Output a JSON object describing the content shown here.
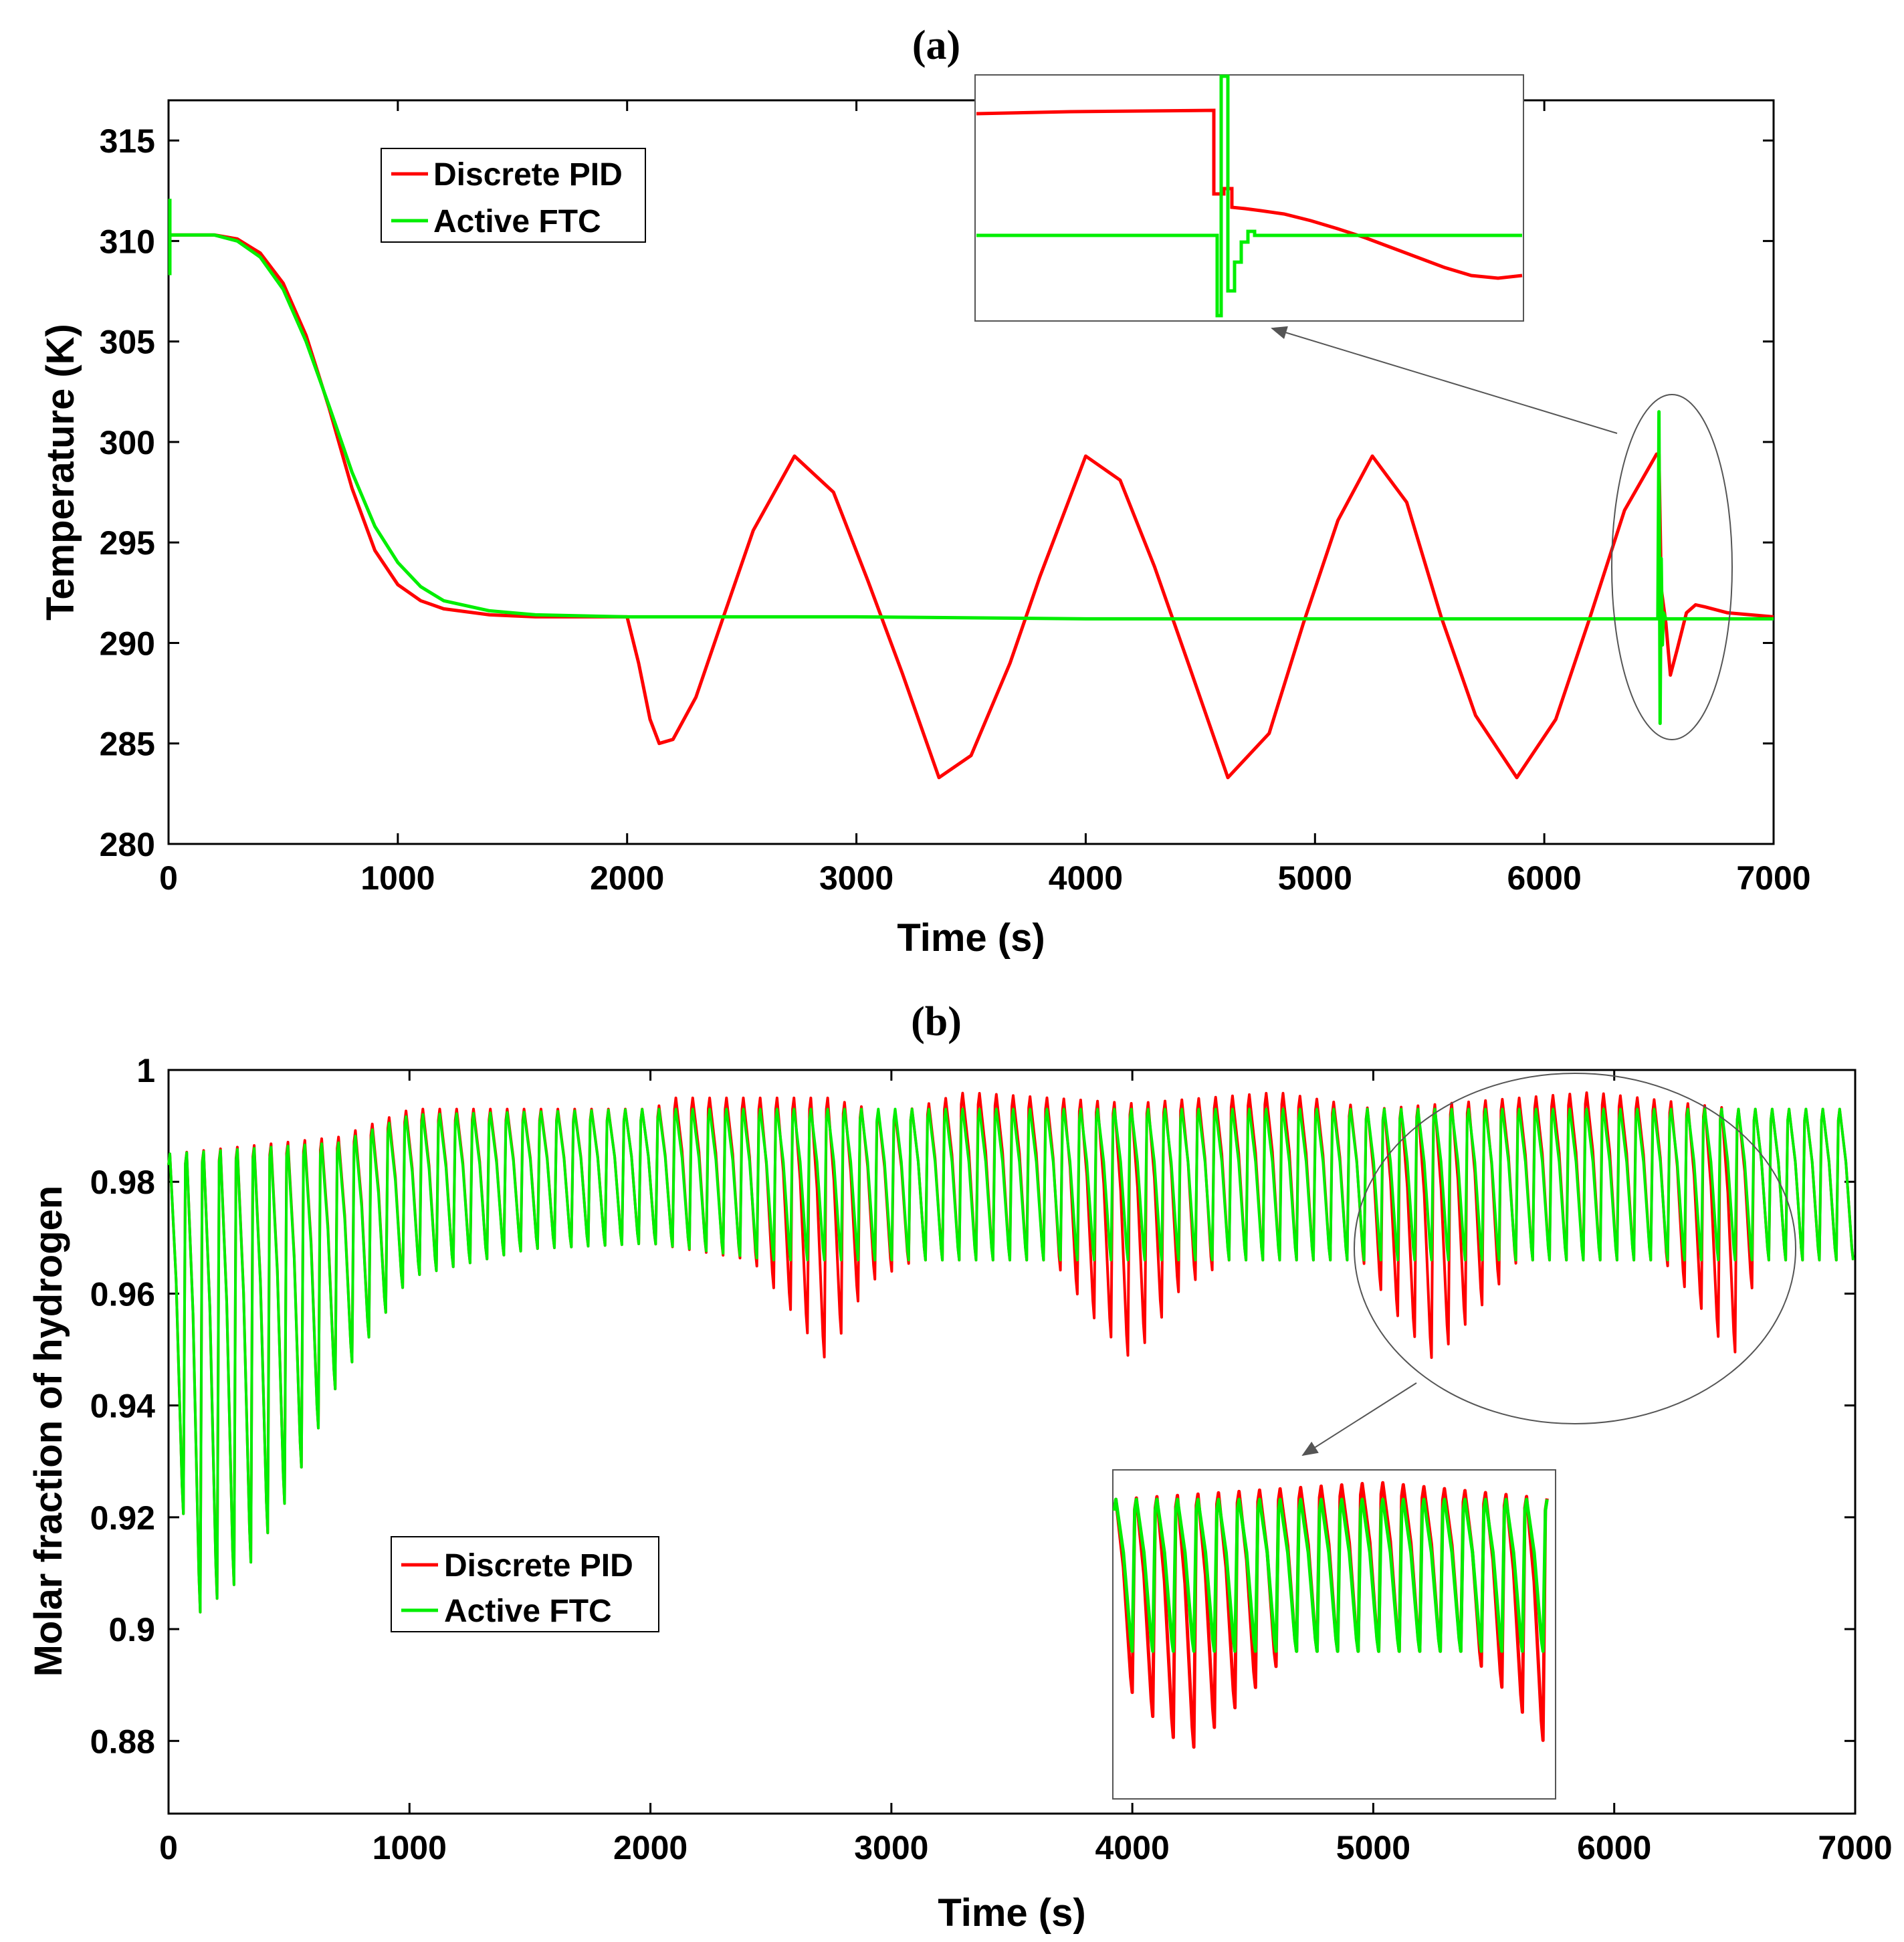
{
  "colors": {
    "pid": "#ff0000",
    "ftc": "#00ee00",
    "axis": "#000000",
    "annotation": "#555555"
  },
  "chart_data": [
    {
      "panel_label": "(a)",
      "type": "line",
      "xlabel": "Time (s)",
      "ylabel": "Temperature (K)",
      "xlim": [
        0,
        7000
      ],
      "ylim": [
        280,
        317
      ],
      "xticks": [
        "0",
        "1000",
        "2000",
        "3000",
        "4000",
        "5000",
        "6000",
        "7000"
      ],
      "yticks": [
        "280",
        "285",
        "290",
        "295",
        "300",
        "305",
        "310",
        "315"
      ],
      "legend": {
        "position": "top-left",
        "entries": [
          "Discrete PID",
          "Active FTC"
        ]
      },
      "series": [
        {
          "name": "Discrete PID",
          "x": [
            0,
            200,
            300,
            400,
            500,
            600,
            700,
            800,
            900,
            1000,
            1100,
            1200,
            1400,
            1600,
            2000,
            2050,
            2100,
            2140,
            2200,
            2300,
            2420,
            2550,
            2730,
            2900,
            3050,
            3200,
            3360,
            3500,
            3670,
            3800,
            4000,
            4150,
            4300,
            4450,
            4620,
            4800,
            4950,
            5100,
            5250,
            5400,
            5550,
            5700,
            5880,
            6050,
            6200,
            6350,
            6490,
            6500,
            6510,
            6530,
            6550,
            6580,
            6620,
            6660,
            6700,
            6800,
            7000
          ],
          "y": [
            310.3,
            310.3,
            310.1,
            309.4,
            307.9,
            305.3,
            301.7,
            297.7,
            294.6,
            292.9,
            292.1,
            291.7,
            291.4,
            291.3,
            291.3,
            289.0,
            286.2,
            285.0,
            285.2,
            287.3,
            291.3,
            295.6,
            299.3,
            297.5,
            293.1,
            288.5,
            283.3,
            284.4,
            289.0,
            293.3,
            299.3,
            298.1,
            293.8,
            288.9,
            283.3,
            285.5,
            291.0,
            296.1,
            299.3,
            297.0,
            291.3,
            286.4,
            283.3,
            286.2,
            291.3,
            296.6,
            299.4,
            299.4,
            292.7,
            291.0,
            288.4,
            289.7,
            291.5,
            291.9,
            291.8,
            291.5,
            291.3
          ]
        },
        {
          "name": "Active FTC",
          "x": [
            0,
            200,
            300,
            400,
            500,
            600,
            700,
            800,
            900,
            1000,
            1100,
            1200,
            1400,
            1600,
            2000,
            3000,
            4000,
            5000,
            6000,
            6495,
            6500,
            6505,
            6510,
            6515,
            6520,
            6530,
            7000
          ],
          "y": [
            310.3,
            310.3,
            310.0,
            309.2,
            307.6,
            305.0,
            301.8,
            298.5,
            295.8,
            294.0,
            292.8,
            292.1,
            291.6,
            291.4,
            291.3,
            291.3,
            291.2,
            291.2,
            291.2,
            291.2,
            301.5,
            286.0,
            294.2,
            289.9,
            291.5,
            291.2,
            291.2
          ]
        }
      ],
      "zoom_annotation": "inset magnifies the transient near t = 6500 s"
    },
    {
      "panel_label": "(b)",
      "type": "line",
      "xlabel": "Time (s)",
      "ylabel": "Molar fraction of hydrogen",
      "xlim": [
        0,
        7000
      ],
      "ylim": [
        0.867,
        1.0
      ],
      "xticks": [
        "0",
        "1000",
        "2000",
        "3000",
        "4000",
        "5000",
        "6000",
        "7000"
      ],
      "yticks": [
        "0.88",
        "0.9",
        "0.92",
        "0.94",
        "0.96",
        "0.98",
        "1"
      ],
      "legend": {
        "position": "bottom-left",
        "entries": [
          "Discrete PID",
          "Active FTC"
        ]
      },
      "cycle_period_s": 70,
      "series": [
        {
          "name": "Discrete PID",
          "description": "sawtooth oscillation each ~70 s cycle",
          "peak_envelope": [
            [
              0,
              0.985
            ],
            [
              700,
              0.988
            ],
            [
              1000,
              0.993
            ],
            [
              2000,
              0.993
            ],
            [
              2100,
              0.995
            ],
            [
              2400,
              0.995
            ],
            [
              2730,
              0.995
            ],
            [
              3000,
              0.992
            ],
            [
              3300,
              0.996
            ],
            [
              4000,
              0.994
            ],
            [
              4600,
              0.996
            ],
            [
              5000,
              0.993
            ],
            [
              5900,
              0.996
            ],
            [
              6500,
              0.993
            ],
            [
              7000,
              0.993
            ]
          ],
          "trough_envelope": [
            [
              0,
              0.948
            ],
            [
              100,
              0.902
            ],
            [
              300,
              0.909
            ],
            [
              500,
              0.924
            ],
            [
              700,
              0.944
            ],
            [
              1000,
              0.963
            ],
            [
              1500,
              0.968
            ],
            [
              2000,
              0.969
            ],
            [
              2420,
              0.966
            ],
            [
              2600,
              0.956
            ],
            [
              2730,
              0.948
            ],
            [
              2900,
              0.962
            ],
            [
              3100,
              0.966
            ],
            [
              3670,
              0.966
            ],
            [
              3850,
              0.955
            ],
            [
              4000,
              0.948
            ],
            [
              4200,
              0.961
            ],
            [
              4400,
              0.966
            ],
            [
              4950,
              0.966
            ],
            [
              5100,
              0.956
            ],
            [
              5250,
              0.948
            ],
            [
              5450,
              0.958
            ],
            [
              5600,
              0.966
            ],
            [
              6200,
              0.966
            ],
            [
              6350,
              0.958
            ],
            [
              6490,
              0.948
            ],
            [
              6600,
              0.966
            ],
            [
              7000,
              0.966
            ]
          ]
        },
        {
          "name": "Active FTC",
          "description": "sawtooth oscillation each ~70 s cycle",
          "peak_envelope": [
            [
              0,
              0.985
            ],
            [
              700,
              0.987
            ],
            [
              1000,
              0.992
            ],
            [
              2000,
              0.993
            ],
            [
              7000,
              0.993
            ]
          ],
          "trough_envelope": [
            [
              0,
              0.948
            ],
            [
              100,
              0.902
            ],
            [
              300,
              0.909
            ],
            [
              500,
              0.924
            ],
            [
              700,
              0.944
            ],
            [
              1000,
              0.963
            ],
            [
              1500,
              0.968
            ],
            [
              2000,
              0.969
            ],
            [
              2500,
              0.966
            ],
            [
              7000,
              0.966
            ]
          ]
        }
      ],
      "zoom_annotation": "inset magnifies the window 5000-6500 s"
    }
  ]
}
